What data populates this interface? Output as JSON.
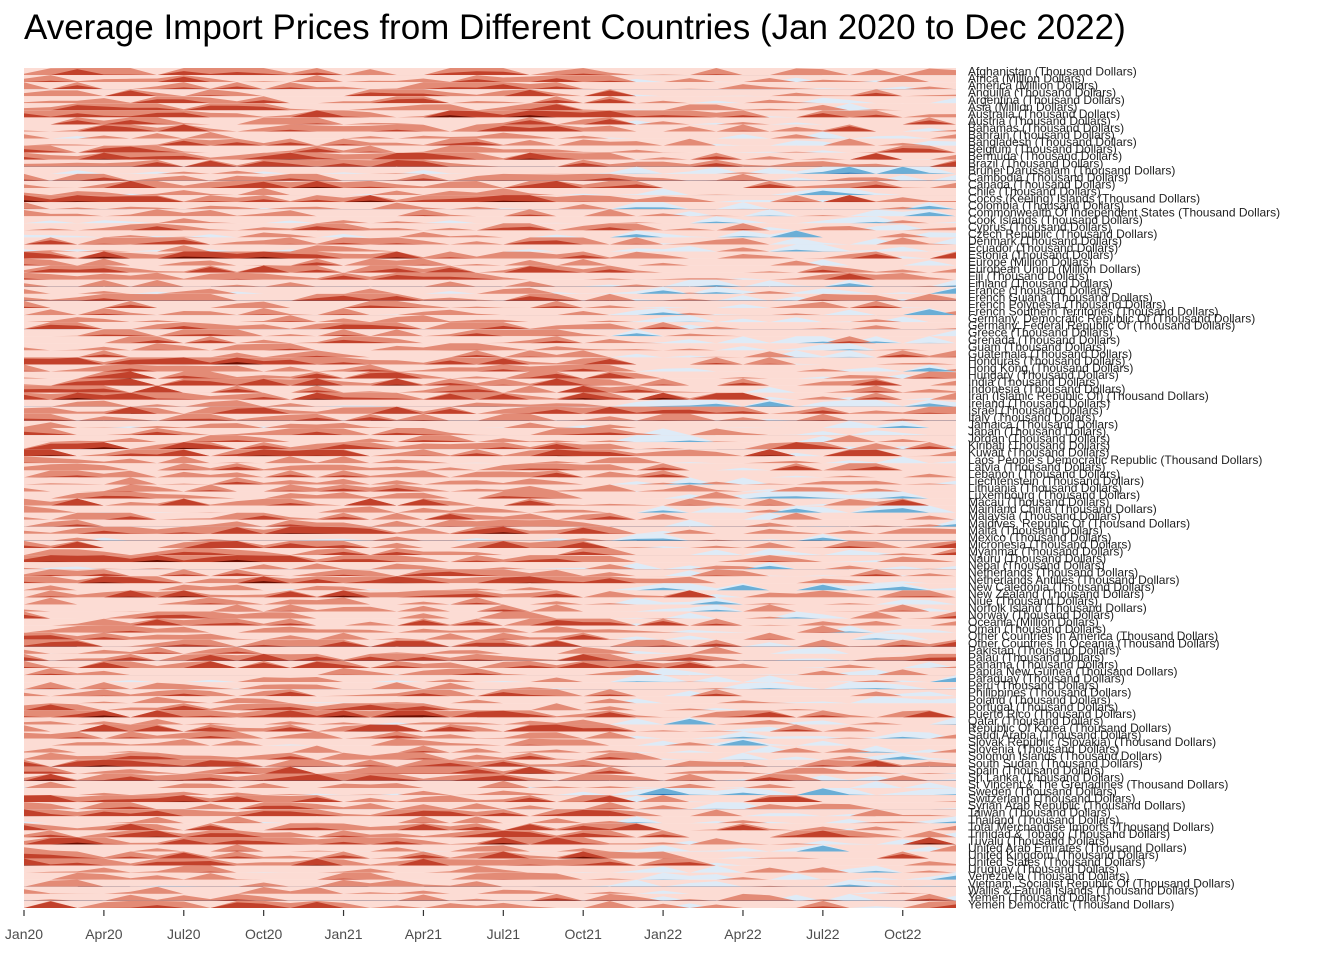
{
  "chart_data": {
    "type": "horizon",
    "title": "Average Import Prices from Different Countries (Jan 2020 to Dec 2022)",
    "x_ticks": [
      "Jan20",
      "Apr20",
      "Jul20",
      "Oct20",
      "Jan21",
      "Apr21",
      "Jul21",
      "Oct21",
      "Jan22",
      "Apr22",
      "Jul22",
      "Oct22"
    ],
    "x_range": [
      "2020-01",
      "2022-12"
    ],
    "months": 36,
    "palette": {
      "neg3": "#08306b",
      "neg2": "#2171b5",
      "neg1": "#6baed6",
      "neg0": "#deebf7",
      "pos0": "#fcdcd4",
      "pos1": "#e38b76",
      "pos2": "#c2412b",
      "pos3": "#6b0d00"
    },
    "rows": [
      "Afghanistan (Thousand Dollars)",
      "Africa (Million Dollars)",
      "America (Million Dollars)",
      "Anguilla (Thousand Dollars)",
      "Argentina (Thousand Dollars)",
      "Asia (Million Dollars)",
      "Australia (Thousand Dollars)",
      "Austria (Thousand Dollars)",
      "Bahamas (Thousand Dollars)",
      "Bahrain (Thousand Dollars)",
      "Bangladesh (Thousand Dollars)",
      "Belgium (Thousand Dollars)",
      "Bermuda (Thousand Dollars)",
      "Brazil (Thousand Dollars)",
      "Brunei Darussalam (Thousand Dollars)",
      "Cambodia (Thousand Dollars)",
      "Canada (Thousand Dollars)",
      "Chile (Thousand Dollars)",
      "Cocos (Keeling) Islands (Thousand Dollars)",
      "Colombia (Thousand Dollars)",
      "Commonwealth Of Independent States (Thousand Dollars)",
      "Cook Islands (Thousand Dollars)",
      "Cyprus (Thousand Dollars)",
      "Czech Republic (Thousand Dollars)",
      "Denmark (Thousand Dollars)",
      "Ecuador (Thousand Dollars)",
      "Estonia (Thousand Dollars)",
      "Europe (Million Dollars)",
      "European Union (Million Dollars)",
      "Fiji (Thousand Dollars)",
      "Finland (Thousand Dollars)",
      "France (Thousand Dollars)",
      "French Guiana (Thousand Dollars)",
      "French Polynesia (Thousand Dollars)",
      "French Southern Territories (Thousand Dollars)",
      "Germany, Democratic Republic Of (Thousand Dollars)",
      "Germany, Federal Republic Of (Thousand Dollars)",
      "Greece (Thousand Dollars)",
      "Grenada (Thousand Dollars)",
      "Guam (Thousand Dollars)",
      "Guatemala (Thousand Dollars)",
      "Honduras (Thousand Dollars)",
      "Hong Kong (Thousand Dollars)",
      "Hungary (Thousand Dollars)",
      "India (Thousand Dollars)",
      "Indonesia (Thousand Dollars)",
      "Iran (Islamic Republic Of) (Thousand Dollars)",
      "Ireland (Thousand Dollars)",
      "Israel (Thousand Dollars)",
      "Italy (Thousand Dollars)",
      "Jamaica (Thousand Dollars)",
      "Japan (Thousand Dollars)",
      "Jordan (Thousand Dollars)",
      "Kiribati (Thousand Dollars)",
      "Kuwait (Thousand Dollars)",
      "Laos People's Democratic Republic (Thousand Dollars)",
      "Latvia (Thousand Dollars)",
      "Lebanon (Thousand Dollars)",
      "Liechtenstein (Thousand Dollars)",
      "Lithuania (Thousand Dollars)",
      "Luxembourg (Thousand Dollars)",
      "Macau (Thousand Dollars)",
      "Mainland China (Thousand Dollars)",
      "Malaysia (Thousand Dollars)",
      "Maldives, Republic Of (Thousand Dollars)",
      "Malta (Thousand Dollars)",
      "Mexico (Thousand Dollars)",
      "Micronesia (Thousand Dollars)",
      "Myanmar (Thousand Dollars)",
      "Nauru (Thousand Dollars)",
      "Nepal (Thousand Dollars)",
      "Netherlands (Thousand Dollars)",
      "Netherlands Antilles (Thousand Dollars)",
      "New Caledonia (Thousand Dollars)",
      "New Zealand (Thousand Dollars)",
      "Niue (Thousand Dollars)",
      "Norfolk Island (Thousand Dollars)",
      "Norway (Thousand Dollars)",
      "Oceania (Million Dollars)",
      "Oman (Thousand Dollars)",
      "Other Countries In America (Thousand Dollars)",
      "Other Countries In Oceania (Thousand Dollars)",
      "Pakistan (Thousand Dollars)",
      "Palau (Thousand Dollars)",
      "Panama (Thousand Dollars)",
      "Papua New Guinea (Thousand Dollars)",
      "Paraguay (Thousand Dollars)",
      "Peru (Thousand Dollars)",
      "Philippines (Thousand Dollars)",
      "Poland (Thousand Dollars)",
      "Portugal (Thousand Dollars)",
      "Puerto Rico (Thousand Dollars)",
      "Qatar (Thousand Dollars)",
      "Republic Of Korea (Thousand Dollars)",
      "Saudi Arabia (Thousand Dollars)",
      "Slovak Republic (Slovakia) (Thousand Dollars)",
      "Slovenia (Thousand Dollars)",
      "Solomon Islands (Thousand Dollars)",
      "South Sudan (Thousand Dollars)",
      "Spain (Thousand Dollars)",
      "Sri Lanka (Thousand Dollars)",
      "St Vincent & The Grenadines (Thousand Dollars)",
      "Sweden (Thousand Dollars)",
      "Switzerland (Thousand Dollars)",
      "Syrian Arab Republic (Thousand Dollars)",
      "Taiwan (Thousand Dollars)",
      "Thailand (Thousand Dollars)",
      "Total Merchandise Imports (Thousand Dollars)",
      "Trinidad & Tobago (Thousand Dollars)",
      "Tuvalu (Thousand Dollars)",
      "United Arab Emirates (Thousand Dollars)",
      "United Kingdom (Thousand Dollars)",
      "United States (Thousand Dollars)",
      "Uruguay (Thousand Dollars)",
      "Venezuela (Thousand Dollars)",
      "Vietnam, Socialist Republic Of (Thousand Dollars)",
      "Wallis & Fatuna Islands (Thousand Dollars)",
      "Yemen (Thousand Dollars)",
      "Yemen Democratic (Thousand Dollars)"
    ]
  }
}
